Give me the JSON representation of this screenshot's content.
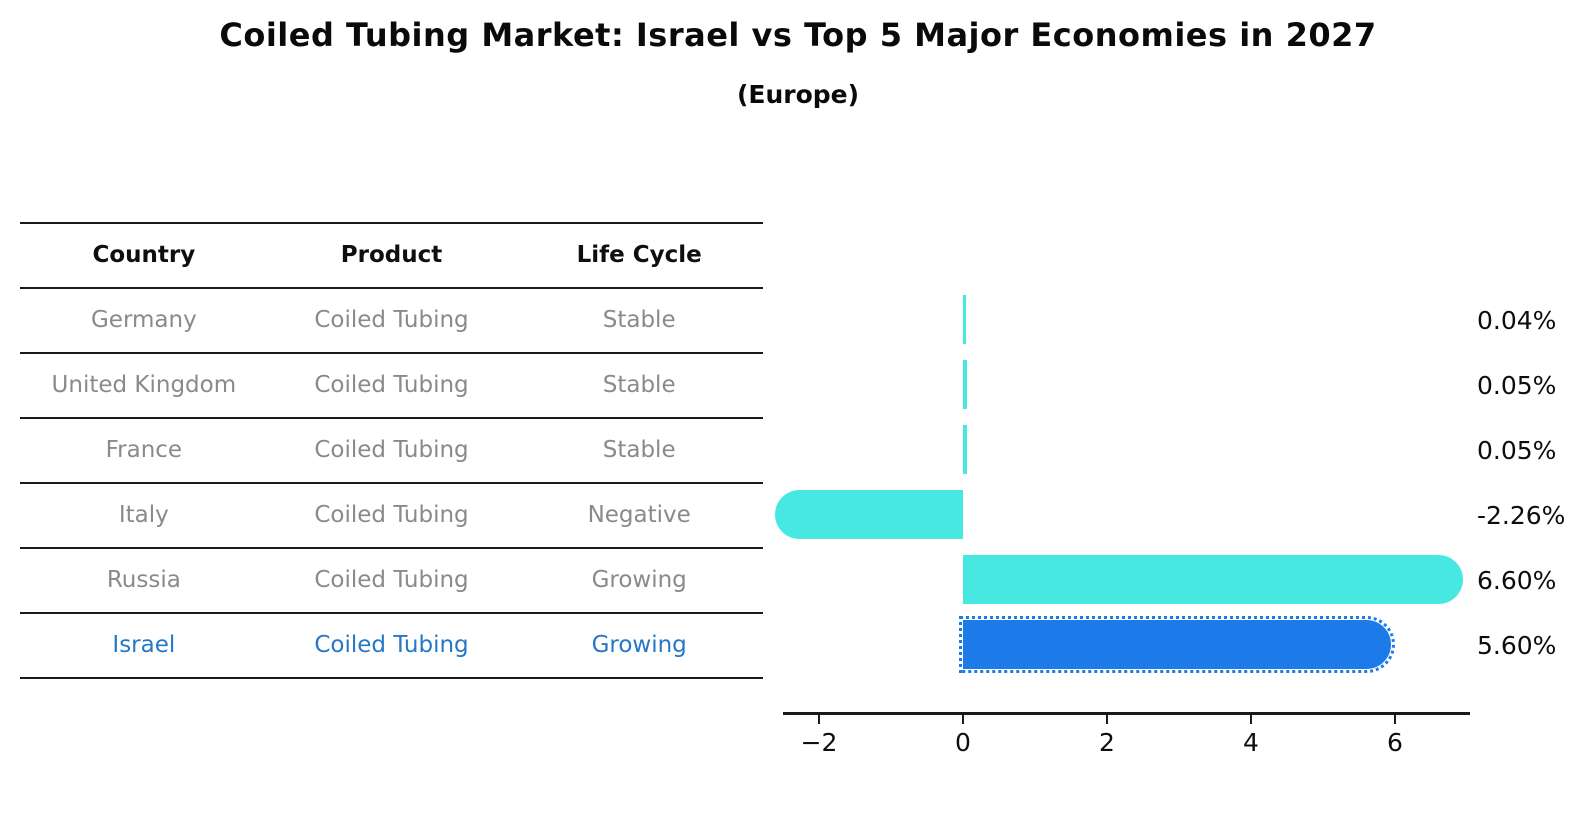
{
  "title": "Coiled Tubing Market: Israel vs Top 5 Major Economies in 2027",
  "subtitle": "(Europe)",
  "table": {
    "headers": [
      "Country",
      "Product",
      "Life Cycle"
    ],
    "rows": [
      {
        "country": "Germany",
        "product": "Coiled Tubing",
        "life_cycle": "Stable",
        "highlight": false
      },
      {
        "country": "United Kingdom",
        "product": "Coiled Tubing",
        "life_cycle": "Stable",
        "highlight": false
      },
      {
        "country": "France",
        "product": "Coiled Tubing",
        "life_cycle": "Stable",
        "highlight": false
      },
      {
        "country": "Italy",
        "product": "Coiled Tubing",
        "life_cycle": "Negative",
        "highlight": false
      },
      {
        "country": "Russia",
        "product": "Coiled Tubing",
        "life_cycle": "Growing",
        "highlight": false
      },
      {
        "country": "Israel",
        "product": "Coiled Tubing",
        "life_cycle": "Growing",
        "highlight": true
      }
    ]
  },
  "chart_data": {
    "type": "bar",
    "orientation": "horizontal",
    "categories": [
      "Germany",
      "United Kingdom",
      "France",
      "Italy",
      "Russia",
      "Israel"
    ],
    "values": [
      0.04,
      0.05,
      0.05,
      -2.26,
      6.6,
      5.6
    ],
    "value_labels": [
      "0.04%",
      "0.05%",
      "0.05%",
      "-2.26%",
      "6.60%",
      "5.60%"
    ],
    "title": "Coiled Tubing Market: Israel vs Top 5 Major Economies in 2027 (Europe)",
    "xlabel": "",
    "ylabel": "",
    "xlim": [
      -2.5,
      7.05
    ],
    "x_ticks": [
      -2,
      0,
      2,
      4,
      6
    ],
    "x_tick_labels": [
      "−2",
      "0",
      "2",
      "4",
      "6"
    ],
    "grid": false,
    "legend": false,
    "highlight_index": 5,
    "colors": {
      "bar": "#47e8e2",
      "highlight_bar": "#1c7ae9",
      "highlight_text": "#2677c8",
      "table_text": "#8a8a8a",
      "header_text": "#0f0f0f",
      "axis": "#1a1a1a"
    }
  }
}
